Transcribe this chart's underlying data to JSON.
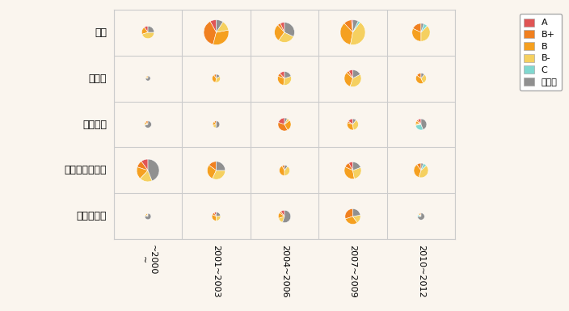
{
  "companies": [
    "花王",
    "伊藤園",
    "森永乳業",
    "雪印メグミルク",
    "サントリー"
  ],
  "periods": [
    "~2000\n~",
    "2001~2003",
    "2004~2006",
    "2007~2009",
    "2010~2012"
  ],
  "color_keys": [
    "A",
    "B+",
    "B",
    "B-",
    "C",
    "対象外"
  ],
  "colors": [
    "#e05555",
    "#f08020",
    "#f5a020",
    "#f5d060",
    "#80d8d0",
    "#909090"
  ],
  "bg_color": "#faf5ee",
  "grid_color": "#cccccc",
  "pie_data": [
    [
      {
        "slices": [
          0.1,
          0.0,
          0.2,
          0.45,
          0.0,
          0.25
        ],
        "size": 0.5
      },
      {
        "slices": [
          0.0,
          0.0,
          0.15,
          0.1,
          0.0,
          0.75
        ],
        "size": 0.2
      },
      {
        "slices": [
          0.0,
          0.12,
          0.1,
          0.08,
          0.0,
          0.7
        ],
        "size": 0.28
      },
      {
        "slices": [
          0.1,
          0.1,
          0.18,
          0.18,
          0.0,
          0.44
        ],
        "size": 0.9
      },
      {
        "slices": [
          0.0,
          0.05,
          0.08,
          0.1,
          0.0,
          0.77
        ],
        "size": 0.25
      }
    ],
    [
      {
        "slices": [
          0.08,
          0.38,
          0.32,
          0.13,
          0.0,
          0.09
        ],
        "size": 1.0
      },
      {
        "slices": [
          0.0,
          0.1,
          0.38,
          0.35,
          0.0,
          0.17
        ],
        "size": 0.33
      },
      {
        "slices": [
          0.0,
          0.1,
          0.2,
          0.18,
          0.0,
          0.52
        ],
        "size": 0.28
      },
      {
        "slices": [
          0.0,
          0.15,
          0.28,
          0.32,
          0.0,
          0.25
        ],
        "size": 0.72
      },
      {
        "slices": [
          0.08,
          0.1,
          0.32,
          0.28,
          0.0,
          0.22
        ],
        "size": 0.35
      }
    ],
    [
      {
        "slices": [
          0.07,
          0.05,
          0.28,
          0.28,
          0.0,
          0.32
        ],
        "size": 0.8
      },
      {
        "slices": [
          0.12,
          0.08,
          0.28,
          0.32,
          0.0,
          0.2
        ],
        "size": 0.55
      },
      {
        "slices": [
          0.2,
          0.38,
          0.28,
          0.07,
          0.0,
          0.07
        ],
        "size": 0.52
      },
      {
        "slices": [
          0.0,
          0.08,
          0.42,
          0.4,
          0.0,
          0.1
        ],
        "size": 0.42
      },
      {
        "slices": [
          0.1,
          0.05,
          0.15,
          0.15,
          0.0,
          0.55
        ],
        "size": 0.5
      }
    ],
    [
      {
        "slices": [
          0.02,
          0.1,
          0.35,
          0.43,
          0.03,
          0.07
        ],
        "size": 1.0
      },
      {
        "slices": [
          0.08,
          0.05,
          0.32,
          0.38,
          0.0,
          0.17
        ],
        "size": 0.68
      },
      {
        "slices": [
          0.15,
          0.05,
          0.32,
          0.38,
          0.0,
          0.1
        ],
        "size": 0.45
      },
      {
        "slices": [
          0.08,
          0.1,
          0.35,
          0.28,
          0.0,
          0.19
        ],
        "size": 0.68
      },
      {
        "slices": [
          0.0,
          0.3,
          0.3,
          0.18,
          0.0,
          0.22
        ],
        "size": 0.62
      }
    ],
    [
      {
        "slices": [
          0.0,
          0.18,
          0.32,
          0.38,
          0.07,
          0.05
        ],
        "size": 0.72
      },
      {
        "slices": [
          0.0,
          0.15,
          0.42,
          0.32,
          0.0,
          0.11
        ],
        "size": 0.42
      },
      {
        "slices": [
          0.1,
          0.05,
          0.08,
          0.05,
          0.28,
          0.44
        ],
        "size": 0.45
      },
      {
        "slices": [
          0.0,
          0.1,
          0.35,
          0.42,
          0.08,
          0.05
        ],
        "size": 0.58
      },
      {
        "slices": [
          0.0,
          0.05,
          0.08,
          0.05,
          0.08,
          0.74
        ],
        "size": 0.28
      }
    ]
  ]
}
